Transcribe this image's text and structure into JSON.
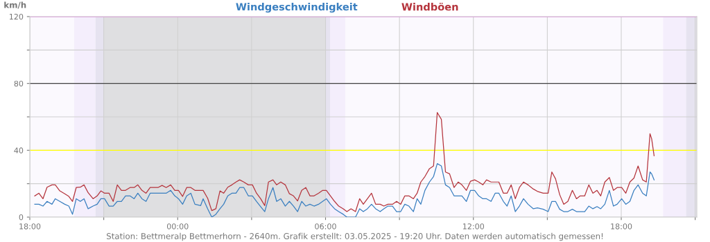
{
  "chart_data": {
    "type": "line",
    "ylabel": "km/h",
    "legend": "top",
    "grid": true,
    "marker": "none",
    "line_style": "solid",
    "annotations": [
      "Station: Bettmeralp Bettmerhorn - 2640m. Grafik erstellt: 03.05.2025 - 19:20 Uhr. Daten werden automatisch gemessen!"
    ],
    "xlim": [
      "2025-05-02T18:00",
      "2025-05-03T21:04"
    ],
    "ylim": [
      0,
      120
    ],
    "xticks": [
      {
        "value": "2025-05-02T18:00",
        "label": "18:00"
      },
      {
        "value": "2025-05-02T21:00",
        "label": null
      },
      {
        "value": "2025-05-03T00:00",
        "label": "00:00"
      },
      {
        "value": "2025-05-03T03:00",
        "label": null
      },
      {
        "value": "2025-05-03T06:00",
        "label": "06:00"
      },
      {
        "value": "2025-05-03T09:00",
        "label": null
      },
      {
        "value": "2025-05-03T12:00",
        "label": "12:00"
      },
      {
        "value": "2025-05-03T15:00",
        "label": null
      },
      {
        "value": "2025-05-03T18:00",
        "label": "18:00"
      },
      {
        "value": "2025-05-03T21:00",
        "label": null
      }
    ],
    "yticks": [
      0,
      {
        "value": 20,
        "label": null
      },
      40,
      {
        "value": 60,
        "label": null
      },
      80,
      {
        "value": 100,
        "label": null
      },
      120
    ],
    "bands": [
      {
        "axis": "x",
        "from": "2025-05-02T19:48",
        "to": "2025-05-02T20:40",
        "color": "#f4eefc"
      },
      {
        "axis": "x",
        "from": "2025-05-02T20:40",
        "to": "2025-05-02T21:00",
        "color": "#e6e3f0"
      },
      {
        "axis": "x",
        "from": "2025-05-02T21:00",
        "to": "2025-05-03T06:00",
        "color": "#dfdfe1"
      },
      {
        "axis": "x",
        "from": "2025-05-03T06:00",
        "to": "2025-05-03T06:11",
        "color": "#e6e3f0"
      },
      {
        "axis": "x",
        "from": "2025-05-03T06:11",
        "to": "2025-05-03T06:48",
        "color": "#f4eefc"
      },
      {
        "axis": "x",
        "from": "2025-05-03T19:42",
        "to": "2025-05-03T20:38",
        "color": "#f4eefc"
      },
      {
        "axis": "x",
        "from": "2025-05-03T20:38",
        "to": "2025-05-03T21:04",
        "color": "#e6e3f0"
      }
    ],
    "ref_lines": [
      {
        "axis": "y",
        "value": 40,
        "color": "#ffff00"
      },
      {
        "axis": "y",
        "value": 80,
        "color": "#444444"
      },
      {
        "axis": "y",
        "value": 120,
        "color": "#ee66ee"
      }
    ],
    "x": [
      "2025-05-02T18:12",
      "2025-05-02T18:22",
      "2025-05-02T18:32",
      "2025-05-02T18:42",
      "2025-05-02T18:54",
      "2025-05-02T19:02",
      "2025-05-02T19:13",
      "2025-05-02T19:25",
      "2025-05-02T19:35",
      "2025-05-02T19:44",
      "2025-05-02T19:53",
      "2025-05-02T20:03",
      "2025-05-02T20:12",
      "2025-05-02T20:22",
      "2025-05-02T20:34",
      "2025-05-02T20:44",
      "2025-05-02T20:53",
      "2025-05-02T21:02",
      "2025-05-02T21:13",
      "2025-05-02T21:23",
      "2025-05-02T21:33",
      "2025-05-02T21:43",
      "2025-05-02T21:53",
      "2025-05-02T22:04",
      "2025-05-02T22:14",
      "2025-05-02T22:23",
      "2025-05-02T22:33",
      "2025-05-02T22:43",
      "2025-05-02T22:53",
      "2025-05-02T23:12",
      "2025-05-02T23:22",
      "2025-05-02T23:32",
      "2025-05-02T23:43",
      "2025-05-02T23:53",
      "2025-05-03T00:02",
      "2025-05-03T00:12",
      "2025-05-03T00:22",
      "2025-05-03T00:32",
      "2025-05-03T00:42",
      "2025-05-03T00:56",
      "2025-05-03T01:02",
      "2025-05-03T01:13",
      "2025-05-03T01:23",
      "2025-05-03T01:33",
      "2025-05-03T01:43",
      "2025-05-03T01:52",
      "2025-05-03T02:02",
      "2025-05-03T02:12",
      "2025-05-03T02:22",
      "2025-05-03T02:31",
      "2025-05-03T02:41",
      "2025-05-03T02:52",
      "2025-05-03T03:02",
      "2025-05-03T03:12",
      "2025-05-03T03:22",
      "2025-05-03T03:32",
      "2025-05-03T03:41",
      "2025-05-03T03:52",
      "2025-05-03T04:01",
      "2025-05-03T04:11",
      "2025-05-03T04:22",
      "2025-05-03T04:32",
      "2025-05-03T04:42",
      "2025-05-03T04:52",
      "2025-05-03T05:02",
      "2025-05-03T05:12",
      "2025-05-03T05:22",
      "2025-05-03T05:32",
      "2025-05-03T05:43",
      "2025-05-03T05:53",
      "2025-05-03T06:02",
      "2025-05-03T06:12",
      "2025-05-03T06:22",
      "2025-05-03T06:32",
      "2025-05-03T06:43",
      "2025-05-03T06:52",
      "2025-05-03T07:02",
      "2025-05-03T07:13",
      "2025-05-03T07:23",
      "2025-05-03T07:32",
      "2025-05-03T07:42",
      "2025-05-03T07:52",
      "2025-05-03T08:02",
      "2025-05-03T08:13",
      "2025-05-03T08:22",
      "2025-05-03T08:32",
      "2025-05-03T08:43",
      "2025-05-03T08:53",
      "2025-05-03T09:03",
      "2025-05-03T09:13",
      "2025-05-03T09:23",
      "2025-05-03T09:34",
      "2025-05-03T09:43",
      "2025-05-03T09:52",
      "2025-05-03T10:02",
      "2025-05-03T10:13",
      "2025-05-03T10:23",
      "2025-05-03T10:32",
      "2025-05-03T10:42",
      "2025-05-03T10:52",
      "2025-05-03T11:02",
      "2025-05-03T11:13",
      "2025-05-03T11:23",
      "2025-05-03T11:32",
      "2025-05-03T11:43",
      "2025-05-03T11:53",
      "2025-05-03T12:03",
      "2025-05-03T12:13",
      "2025-05-03T12:23",
      "2025-05-03T12:32",
      "2025-05-03T12:43",
      "2025-05-03T12:53",
      "2025-05-03T13:02",
      "2025-05-03T13:13",
      "2025-05-03T13:22",
      "2025-05-03T13:32",
      "2025-05-03T13:42",
      "2025-05-03T13:52",
      "2025-05-03T14:02",
      "2025-05-03T14:13",
      "2025-05-03T14:26",
      "2025-05-03T14:36",
      "2025-05-03T14:50",
      "2025-05-03T15:02",
      "2025-05-03T15:11",
      "2025-05-03T15:20",
      "2025-05-03T15:30",
      "2025-05-03T15:40",
      "2025-05-03T15:50",
      "2025-05-03T16:01",
      "2025-05-03T16:11",
      "2025-05-03T16:20",
      "2025-05-03T16:31",
      "2025-05-03T16:41",
      "2025-05-03T16:51",
      "2025-05-03T17:01",
      "2025-05-03T17:10",
      "2025-05-03T17:20",
      "2025-05-03T17:31",
      "2025-05-03T17:41",
      "2025-05-03T17:50",
      "2025-05-03T18:01",
      "2025-05-03T18:11",
      "2025-05-03T18:21",
      "2025-05-03T18:31",
      "2025-05-03T18:41",
      "2025-05-03T18:52",
      "2025-05-03T19:01",
      "2025-05-03T19:10",
      "2025-05-03T19:14",
      "2025-05-03T19:20"
    ],
    "series": [
      {
        "name": "Windgeschwindigkeit",
        "color": "#3a7fc0",
        "values": [
          7.7,
          7.7,
          6.6,
          9.4,
          7.7,
          11,
          9.4,
          7.7,
          6.6,
          1.7,
          11,
          9.4,
          11,
          5,
          6.6,
          7.7,
          11,
          11,
          6.6,
          6.6,
          9.4,
          9.4,
          12.7,
          12.7,
          11,
          14.3,
          11,
          9.4,
          14.3,
          14.3,
          14.3,
          14.3,
          16,
          12.7,
          11,
          7.7,
          12.7,
          14.3,
          7.7,
          6.9,
          11,
          5,
          0,
          1.7,
          5,
          7.7,
          12.7,
          14.3,
          14.3,
          17.7,
          17.7,
          12.7,
          12.7,
          9.4,
          6.3,
          3.3,
          11,
          17.7,
          9.4,
          11,
          6.6,
          9.4,
          6.6,
          3.3,
          9.4,
          6.6,
          7.7,
          6.6,
          7.7,
          9.4,
          11,
          7.7,
          5,
          3.3,
          1.7,
          0,
          0,
          0,
          5,
          3.3,
          5,
          7.7,
          5,
          3.3,
          5,
          6.6,
          6.6,
          3.3,
          3.3,
          7.7,
          6.6,
          3.3,
          11,
          7.7,
          16,
          21,
          24.3,
          32,
          30.6,
          19.3,
          17.7,
          12.7,
          12.7,
          12.7,
          9.4,
          16,
          16,
          12.7,
          11,
          11,
          9.4,
          14.3,
          14.3,
          9.4,
          6.6,
          12.7,
          3.3,
          6.6,
          11,
          7.7,
          5,
          5.5,
          4.7,
          3.3,
          9.4,
          9.4,
          4.7,
          3.3,
          3.3,
          4.7,
          3.3,
          3.3,
          3.3,
          6.6,
          5,
          6.3,
          5,
          7.7,
          16,
          6.6,
          7.7,
          11,
          7.7,
          9.4,
          16,
          19.3,
          14.3,
          12.7,
          27,
          25.9,
          22.3
        ]
      },
      {
        "name": "Windböen",
        "color": "#b5343c",
        "values": [
          12.7,
          14.3,
          11,
          17.9,
          19.3,
          19.3,
          15.7,
          14,
          12.4,
          9.4,
          17.7,
          17.9,
          19.3,
          14.6,
          11,
          12.7,
          15.7,
          14.3,
          14.3,
          9.4,
          19.3,
          16,
          16,
          17.7,
          17.7,
          19.3,
          16,
          14.3,
          17.7,
          17.7,
          19,
          17.7,
          19.3,
          16,
          16,
          12.4,
          17.7,
          17.7,
          16,
          16,
          16,
          11.3,
          3.9,
          5,
          15.7,
          14.3,
          17.9,
          19.3,
          21,
          22.3,
          21,
          19.3,
          19.3,
          14.3,
          11,
          6.9,
          21,
          22.3,
          19.3,
          21,
          19.3,
          14,
          12.7,
          9.7,
          16,
          17.7,
          12.7,
          12.7,
          14.3,
          16,
          16,
          12.7,
          9.4,
          6.6,
          5,
          3.3,
          5,
          3.3,
          11,
          7.7,
          11,
          14.3,
          7.7,
          7.7,
          6.6,
          7.7,
          7.7,
          9.4,
          7.7,
          12.7,
          12.7,
          11,
          14.3,
          21,
          24.3,
          29,
          30.6,
          62.6,
          58.5,
          27,
          25.9,
          17.7,
          21,
          19.3,
          16,
          21.5,
          22.3,
          21,
          19.3,
          22.3,
          21,
          21,
          21,
          14.3,
          14.3,
          19.3,
          11,
          17.7,
          21,
          19.3,
          16.8,
          15.4,
          14.3,
          14.3,
          27,
          22.9,
          13.5,
          7.7,
          9.4,
          16,
          11,
          12.7,
          12.7,
          19.3,
          14.3,
          16,
          12.7,
          21,
          23.7,
          16,
          17.7,
          17.7,
          14.3,
          21,
          23.4,
          30.6,
          22.3,
          21,
          49.9,
          46.9,
          36.7
        ]
      }
    ]
  }
}
